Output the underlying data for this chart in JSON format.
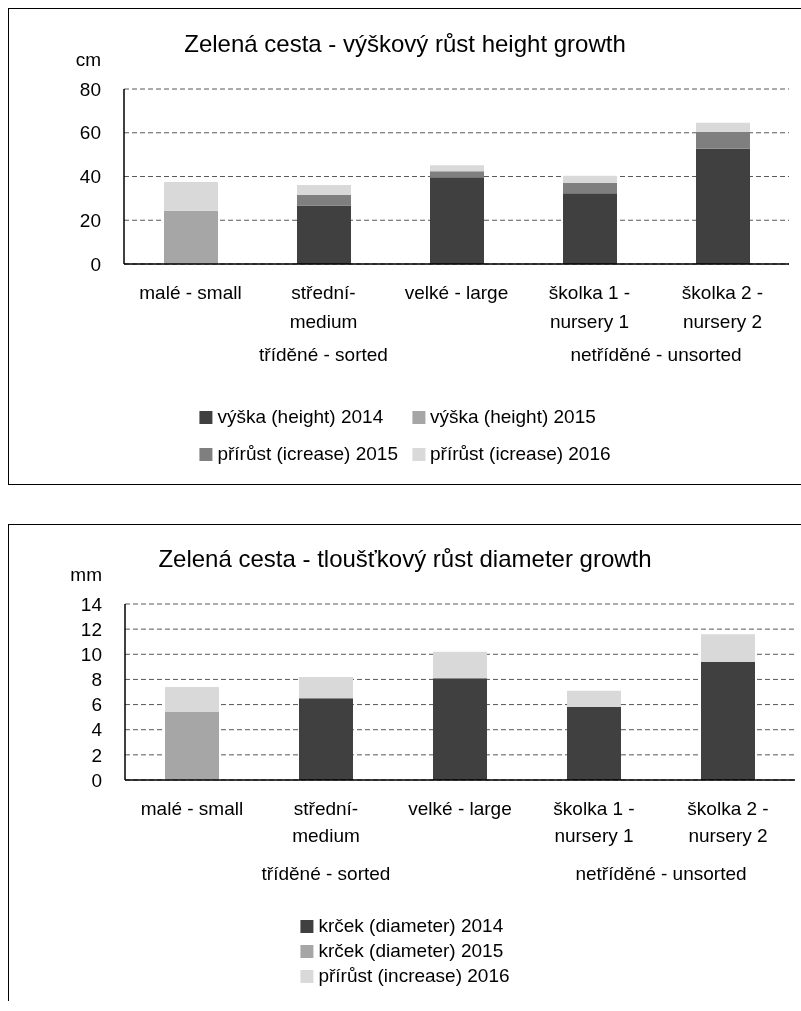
{
  "chart_data": [
    {
      "type": "bar",
      "title": "Zelená cesta - výškový růst height growth",
      "ylabel": "cm",
      "categories": [
        "malé - small",
        "střední-medium",
        "velké - large",
        "školka 1 - nursery 1",
        "školka 2 - nursery 2"
      ],
      "stacked": true,
      "series": [
        {
          "name": "výška (height) 2014",
          "color": "#404040",
          "values": [
            null,
            26.8,
            39.7,
            32.4,
            52.7
          ]
        },
        {
          "name": "výška (height) 2015",
          "color": "#a6a6a6",
          "values": [
            24.4,
            null,
            null,
            null,
            null
          ]
        },
        {
          "name": "přírůst (icrease) 2015",
          "color": "#7f7f7f",
          "values": [
            null,
            4.9,
            2.7,
            4.7,
            7.7
          ]
        },
        {
          "name": "přírůst (icrease) 2016",
          "color": "#d9d9d9",
          "values": [
            13.1,
            4.4,
            2.7,
            3.2,
            4.2
          ]
        }
      ],
      "ylim": [
        0,
        80
      ],
      "yticks": [
        0,
        20,
        40,
        60,
        80
      ],
      "grid": "y",
      "legend": "bottom",
      "annotations": [
        "tříděné - sorted",
        "netříděné - unsorted"
      ]
    },
    {
      "type": "bar",
      "title": "Zelená cesta - tloušťkový růst diameter growth",
      "ylabel": "mm",
      "categories": [
        "malé - small",
        "střední-medium",
        "velké - large",
        "školka 1 - nursery 1",
        "školka 2 - nursery 2"
      ],
      "stacked": true,
      "series": [
        {
          "name": "krček (diameter) 2014",
          "color": "#404040",
          "values": [
            null,
            6.5,
            8.1,
            5.8,
            9.4
          ]
        },
        {
          "name": "krček (diameter) 2015",
          "color": "#a6a6a6",
          "values": [
            5.4,
            null,
            null,
            null,
            null
          ]
        },
        {
          "name": "přírůst (increase) 2016",
          "color": "#d9d9d9",
          "values": [
            2.0,
            1.7,
            2.1,
            1.3,
            2.2
          ]
        }
      ],
      "ylim": [
        0,
        14
      ],
      "yticks": [
        0,
        2,
        4,
        6,
        8,
        10,
        12,
        14
      ],
      "grid": "y",
      "legend": "bottom",
      "annotations": [
        "tříděné - sorted",
        "netříděné - unsorted"
      ]
    }
  ]
}
